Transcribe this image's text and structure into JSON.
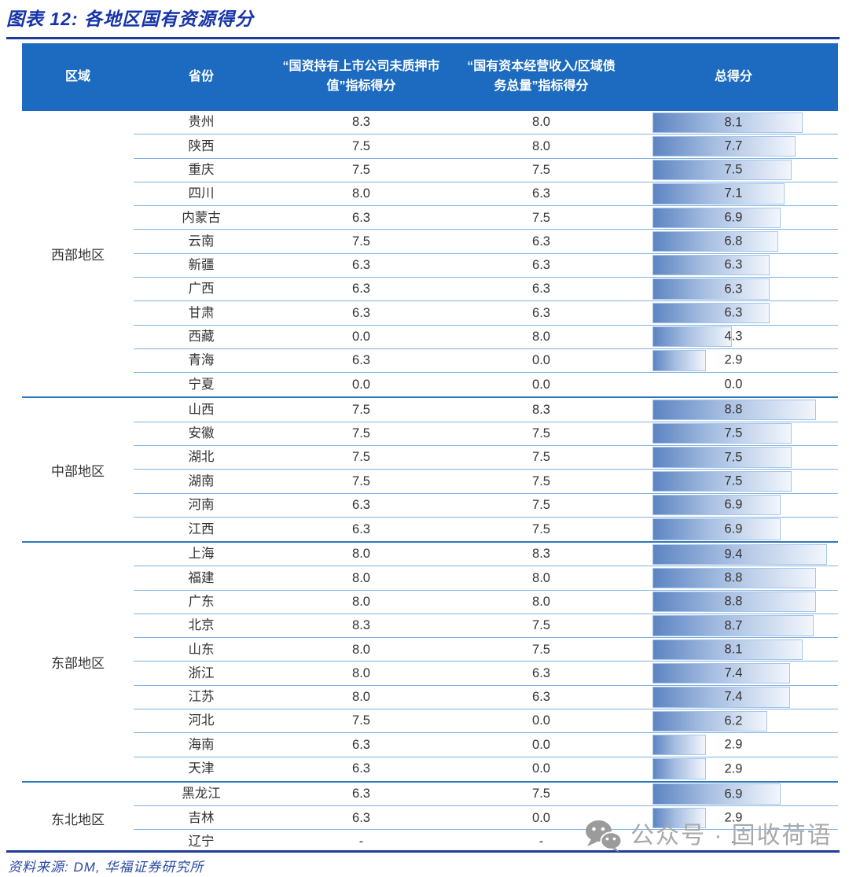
{
  "title": "图表 12: 各地区国有资源得分",
  "source": "资料来源: DM, 华福证券研究所",
  "watermark": {
    "icon": "wechat-icon",
    "text": "公众号 · 固收荷语"
  },
  "colors": {
    "header_bg": "#1C6BC0",
    "header_text": "#FFFFFF",
    "title_blue": "#1634A8",
    "rule_navy": "#1E3C96",
    "row_divider": "#7FB3E4",
    "group_divider": "#2F77BC",
    "bar_start": "#5D84C2",
    "bar_end": "#F2F6FC",
    "bar_border": "#A5C6E8",
    "text": "#333333",
    "source_blue": "#2A4AA5",
    "watermark_gray": "#A9A9A9"
  },
  "table": {
    "headers": {
      "region": "区域",
      "province": "省份",
      "score1": "“国资持有上市公司未质押市值”指标得分",
      "score2": "“国有资本经营收入/区域债务总量”指标得分",
      "total": "总得分"
    },
    "groups": [
      {
        "region": "西部地区",
        "rows": [
          {
            "province": "贵州",
            "score1": "8.3",
            "score2": "8.0",
            "total": "8.1"
          },
          {
            "province": "陕西",
            "score1": "7.5",
            "score2": "8.0",
            "total": "7.7"
          },
          {
            "province": "重庆",
            "score1": "7.5",
            "score2": "7.5",
            "total": "7.5"
          },
          {
            "province": "四川",
            "score1": "8.0",
            "score2": "6.3",
            "total": "7.1"
          },
          {
            "province": "内蒙古",
            "score1": "6.3",
            "score2": "7.5",
            "total": "6.9"
          },
          {
            "province": "云南",
            "score1": "7.5",
            "score2": "6.3",
            "total": "6.8"
          },
          {
            "province": "新疆",
            "score1": "6.3",
            "score2": "6.3",
            "total": "6.3"
          },
          {
            "province": "广西",
            "score1": "6.3",
            "score2": "6.3",
            "total": "6.3"
          },
          {
            "province": "甘肃",
            "score1": "6.3",
            "score2": "6.3",
            "total": "6.3"
          },
          {
            "province": "西藏",
            "score1": "0.0",
            "score2": "8.0",
            "total": "4.3"
          },
          {
            "province": "青海",
            "score1": "6.3",
            "score2": "0.0",
            "total": "2.9"
          },
          {
            "province": "宁夏",
            "score1": "0.0",
            "score2": "0.0",
            "total": "0.0"
          }
        ]
      },
      {
        "region": "中部地区",
        "rows": [
          {
            "province": "山西",
            "score1": "7.5",
            "score2": "8.3",
            "total": "8.8"
          },
          {
            "province": "安徽",
            "score1": "7.5",
            "score2": "7.5",
            "total": "7.5"
          },
          {
            "province": "湖北",
            "score1": "7.5",
            "score2": "7.5",
            "total": "7.5"
          },
          {
            "province": "湖南",
            "score1": "7.5",
            "score2": "7.5",
            "total": "7.5"
          },
          {
            "province": "河南",
            "score1": "6.3",
            "score2": "7.5",
            "total": "6.9"
          },
          {
            "province": "江西",
            "score1": "6.3",
            "score2": "7.5",
            "total": "6.9"
          }
        ]
      },
      {
        "region": "东部地区",
        "rows": [
          {
            "province": "上海",
            "score1": "8.0",
            "score2": "8.3",
            "total": "9.4"
          },
          {
            "province": "福建",
            "score1": "8.0",
            "score2": "8.0",
            "total": "8.8"
          },
          {
            "province": "广东",
            "score1": "8.0",
            "score2": "8.0",
            "total": "8.8"
          },
          {
            "province": "北京",
            "score1": "8.3",
            "score2": "7.5",
            "total": "8.7"
          },
          {
            "province": "山东",
            "score1": "8.0",
            "score2": "7.5",
            "total": "8.1"
          },
          {
            "province": "浙江",
            "score1": "8.0",
            "score2": "6.3",
            "total": "7.4"
          },
          {
            "province": "江苏",
            "score1": "8.0",
            "score2": "6.3",
            "total": "7.4"
          },
          {
            "province": "河北",
            "score1": "7.5",
            "score2": "0.0",
            "total": "6.2"
          },
          {
            "province": "海南",
            "score1": "6.3",
            "score2": "0.0",
            "total": "2.9"
          },
          {
            "province": "天津",
            "score1": "6.3",
            "score2": "0.0",
            "total": "2.9"
          }
        ]
      },
      {
        "region": "东北地区",
        "rows": [
          {
            "province": "黑龙江",
            "score1": "6.3",
            "score2": "7.5",
            "total": "6.9"
          },
          {
            "province": "吉林",
            "score1": "6.3",
            "score2": "0.0",
            "total": "2.9"
          },
          {
            "province": "辽宁",
            "score1": "-",
            "score2": "-",
            "total": "-"
          }
        ]
      }
    ]
  },
  "chart_data": {
    "type": "table",
    "title": "图表 12: 各地区国有资源得分",
    "columns": [
      "区域",
      "省份",
      "“国资持有上市公司未质押市值”指标得分",
      "“国有资本经营收入/区域债务总量”指标得分",
      "总得分"
    ],
    "bar_column": "总得分",
    "bar_scale": [
      0,
      10
    ],
    "rows": [
      [
        "西部地区",
        "贵州",
        8.3,
        8.0,
        8.1
      ],
      [
        "西部地区",
        "陕西",
        7.5,
        8.0,
        7.7
      ],
      [
        "西部地区",
        "重庆",
        7.5,
        7.5,
        7.5
      ],
      [
        "西部地区",
        "四川",
        8.0,
        6.3,
        7.1
      ],
      [
        "西部地区",
        "内蒙古",
        6.3,
        7.5,
        6.9
      ],
      [
        "西部地区",
        "云南",
        7.5,
        6.3,
        6.8
      ],
      [
        "西部地区",
        "新疆",
        6.3,
        6.3,
        6.3
      ],
      [
        "西部地区",
        "广西",
        6.3,
        6.3,
        6.3
      ],
      [
        "西部地区",
        "甘肃",
        6.3,
        6.3,
        6.3
      ],
      [
        "西部地区",
        "西藏",
        0.0,
        8.0,
        4.3
      ],
      [
        "西部地区",
        "青海",
        6.3,
        0.0,
        2.9
      ],
      [
        "西部地区",
        "宁夏",
        0.0,
        0.0,
        0.0
      ],
      [
        "中部地区",
        "山西",
        7.5,
        8.3,
        8.8
      ],
      [
        "中部地区",
        "安徽",
        7.5,
        7.5,
        7.5
      ],
      [
        "中部地区",
        "湖北",
        7.5,
        7.5,
        7.5
      ],
      [
        "中部地区",
        "湖南",
        7.5,
        7.5,
        7.5
      ],
      [
        "中部地区",
        "河南",
        6.3,
        7.5,
        6.9
      ],
      [
        "中部地区",
        "江西",
        6.3,
        7.5,
        6.9
      ],
      [
        "东部地区",
        "上海",
        8.0,
        8.3,
        9.4
      ],
      [
        "东部地区",
        "福建",
        8.0,
        8.0,
        8.8
      ],
      [
        "东部地区",
        "广东",
        8.0,
        8.0,
        8.8
      ],
      [
        "东部地区",
        "北京",
        8.3,
        7.5,
        8.7
      ],
      [
        "东部地区",
        "山东",
        8.0,
        7.5,
        8.1
      ],
      [
        "东部地区",
        "浙江",
        8.0,
        6.3,
        7.4
      ],
      [
        "东部地区",
        "江苏",
        8.0,
        6.3,
        7.4
      ],
      [
        "东部地区",
        "河北",
        7.5,
        0.0,
        6.2
      ],
      [
        "东部地区",
        "海南",
        6.3,
        0.0,
        2.9
      ],
      [
        "东部地区",
        "天津",
        6.3,
        0.0,
        2.9
      ],
      [
        "东北地区",
        "黑龙江",
        6.3,
        7.5,
        6.9
      ],
      [
        "东北地区",
        "吉林",
        6.3,
        0.0,
        2.9
      ],
      [
        "东北地区",
        "辽宁",
        null,
        null,
        null
      ]
    ]
  }
}
